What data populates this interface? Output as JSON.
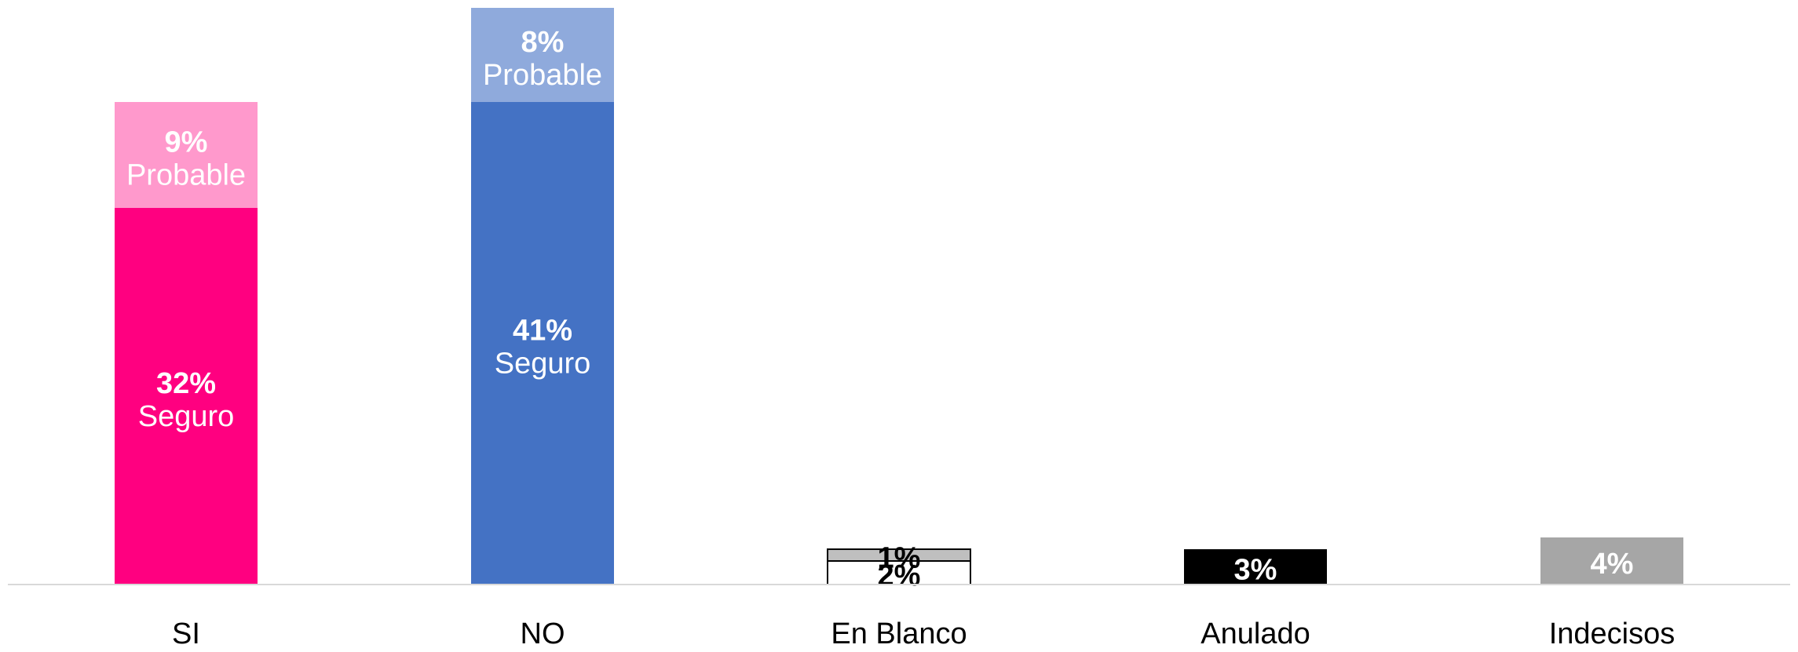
{
  "chart_data": {
    "type": "bar",
    "stacked": true,
    "categories": [
      "SI",
      "NO",
      "En Blanco",
      "Anulado",
      "Indecisos"
    ],
    "series": [
      {
        "name": "Seguro",
        "label_visible": [
          true,
          true,
          false,
          false,
          false
        ],
        "values": [
          32,
          41,
          2,
          3,
          4
        ],
        "colors": [
          "#ff0080",
          "#4472c4",
          "#ffffff",
          "#000000",
          "#a6a6a6"
        ],
        "value_labels": [
          "32%",
          "41%",
          "2%",
          "3%",
          "4%"
        ],
        "label_colors": [
          "#ffffff",
          "#ffffff",
          "#000000",
          "#ffffff",
          "#ffffff"
        ]
      },
      {
        "name": "Probable",
        "label_visible": [
          true,
          true,
          false,
          false,
          false
        ],
        "values": [
          9,
          8,
          1,
          0,
          0
        ],
        "colors": [
          "#ff99cc",
          "#8faadc",
          "#bfbfbf",
          "#000000",
          "#a6a6a6"
        ],
        "value_labels": [
          "9%",
          "8%",
          "1%",
          "",
          ""
        ],
        "label_colors": [
          "#ffffff",
          "#ffffff",
          "#000000",
          "#ffffff",
          "#ffffff"
        ]
      }
    ],
    "ylim": [
      0,
      49
    ],
    "grid": false,
    "legend": "none",
    "xlabel": "",
    "ylabel": ""
  }
}
